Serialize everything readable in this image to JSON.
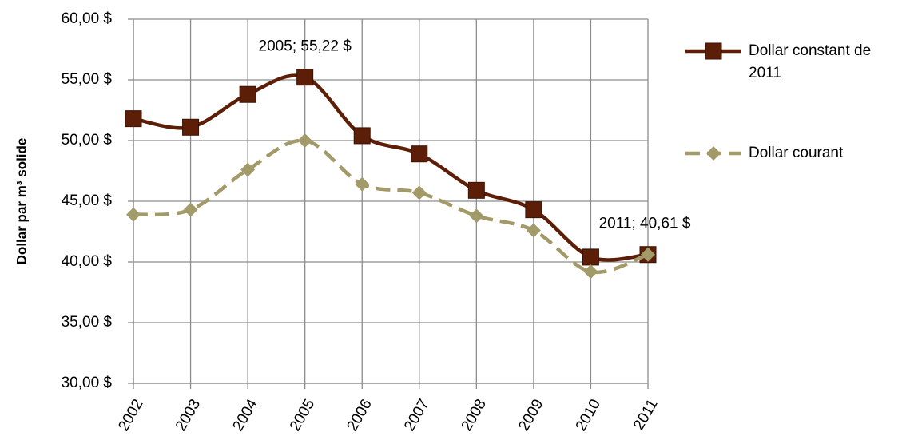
{
  "chart_data": {
    "type": "line",
    "y_label": "Dollar par m³ solide",
    "categories": [
      "2002",
      "2003",
      "2004",
      "2005",
      "2006",
      "2007",
      "2008",
      "2009",
      "2010",
      "2011"
    ],
    "series": [
      {
        "name": "Dollar constant de 2011",
        "color": "#5c1e06",
        "marker": "square",
        "dash": false,
        "values": [
          51.8,
          51.1,
          53.8,
          55.22,
          50.4,
          48.9,
          45.9,
          44.3,
          40.4,
          40.61
        ],
        "value_labels": [
          null,
          null,
          null,
          "2005;  55,22 $",
          null,
          null,
          null,
          null,
          null,
          "2011;  40,61 $"
        ]
      },
      {
        "name": "Dollar courant",
        "color": "#a39a6a",
        "marker": "diamond",
        "dash": true,
        "values": [
          43.9,
          44.3,
          47.6,
          50.0,
          46.4,
          45.7,
          43.8,
          42.6,
          39.2,
          40.61
        ]
      }
    ],
    "ylim": [
      30,
      60
    ],
    "yticks": [
      {
        "value": 30,
        "label": "30,00 $"
      },
      {
        "value": 35,
        "label": "35,00 $"
      },
      {
        "value": 40,
        "label": "40,00 $"
      },
      {
        "value": 45,
        "label": "45,00 $"
      },
      {
        "value": 50,
        "label": "50,00 $"
      },
      {
        "value": 55,
        "label": "55,00 $"
      },
      {
        "value": 60,
        "label": "60,00 $"
      }
    ],
    "grid": true,
    "legend": "right"
  }
}
